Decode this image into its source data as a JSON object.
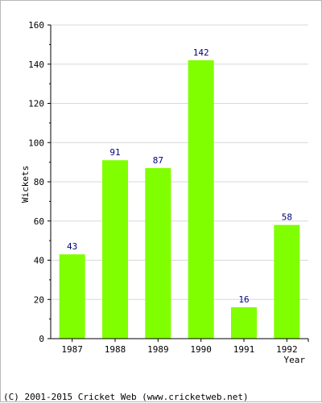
{
  "chart_data": {
    "type": "bar",
    "categories": [
      "1987",
      "1988",
      "1989",
      "1990",
      "1991",
      "1992"
    ],
    "values": [
      43,
      91,
      87,
      142,
      16,
      58
    ],
    "ylabel": "Wickets",
    "xlabel": "Year",
    "ylim": [
      0,
      160
    ],
    "yticks": [
      0,
      20,
      40,
      60,
      80,
      100,
      120,
      140,
      160
    ],
    "grid": true,
    "bar_color": "#80ff00",
    "label_color": "#000080"
  },
  "footer": {
    "text": "(C) 2001-2015 Cricket Web (www.cricketweb.net)"
  }
}
